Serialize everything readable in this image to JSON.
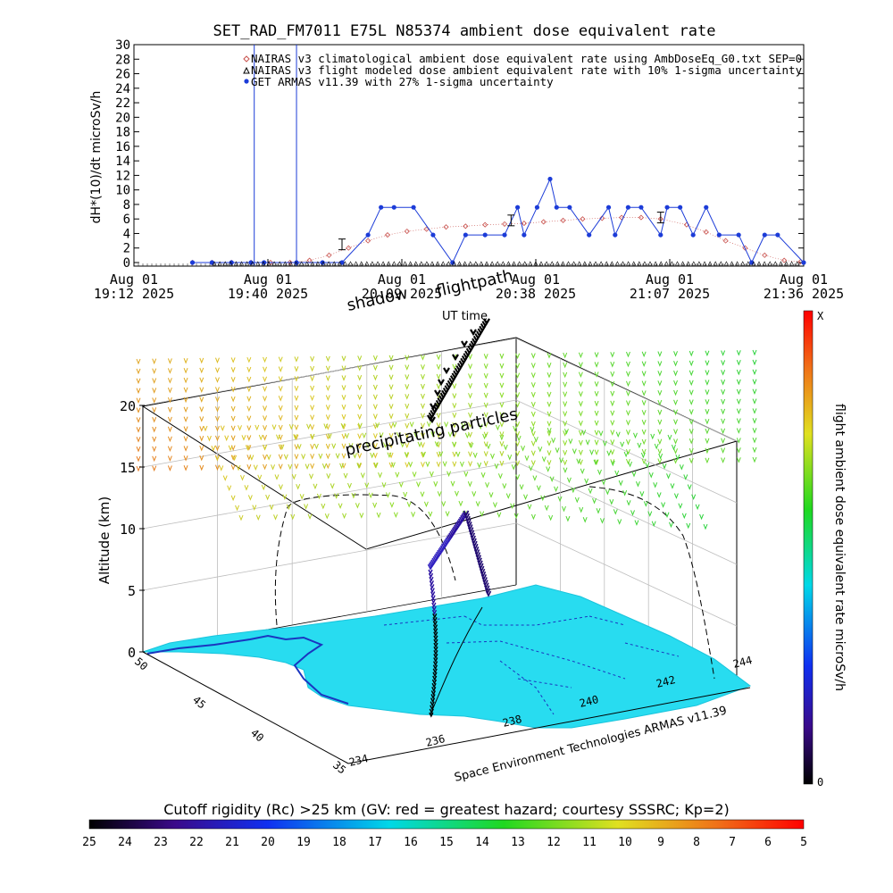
{
  "title": "SET_RAD_FM7011  E75L N85374 ambient dose equivalent rate",
  "timeseries": {
    "ylabel": "dH*(10)/dt microSv/h",
    "yticks": [
      "0",
      "2",
      "4",
      "6",
      "8",
      "10",
      "12",
      "14",
      "16",
      "18",
      "20",
      "22",
      "24",
      "26",
      "28",
      "30"
    ],
    "xticks": [
      {
        "top": "Aug 01",
        "bottom": "19:12 2025"
      },
      {
        "top": "Aug 01",
        "bottom": "19:40 2025"
      },
      {
        "top": "Aug 01",
        "bottom": "20:09 2025"
      },
      {
        "top": "Aug 01",
        "bottom": "20:38 2025"
      },
      {
        "top": "Aug 01",
        "bottom": "21:07 2025"
      },
      {
        "top": "Aug 01",
        "bottom": "21:36 2025"
      }
    ],
    "legend": [
      "NAIRAS v3 climatological ambient dose equivalent rate using AmbDoseEq_G0.txt SEP=0",
      "NAIRAS v3 flight modeled dose ambient equivalent rate with 10% 1-sigma uncertainty",
      "GET ARMAS v11.39 with 27% 1-sigma uncertainty"
    ]
  },
  "chart_data": [
    {
      "type": "line",
      "title": "SET_RAD_FM7011  E75L N85374 ambient dose equivalent rate",
      "ylabel": "dH*(10)/dt microSv/h",
      "ylim": [
        0,
        30
      ],
      "x_unit": "minutes since 19:12 UT, Aug 01 2025",
      "series": [
        {
          "name": "NAIRAS v3 climatological ambient dose equivalent rate using AmbDoseEq_G0.txt SEP=0",
          "color": "#c8504c",
          "x": [
            18,
            24,
            30,
            36,
            42,
            48,
            54,
            60,
            66,
            72,
            78,
            84,
            90,
            96,
            102,
            108,
            114,
            120,
            126,
            132,
            138,
            144,
            150,
            156,
            162,
            170,
            176,
            182,
            188,
            194,
            200,
            205
          ],
          "y": [
            0,
            0,
            0,
            0,
            0,
            0,
            0.3,
            1.0,
            2.0,
            3.0,
            3.8,
            4.3,
            4.6,
            4.9,
            5.0,
            5.2,
            5.3,
            5.4,
            5.6,
            5.8,
            6.0,
            6.1,
            6.2,
            6.2,
            6.0,
            5.2,
            4.2,
            3.0,
            2.0,
            1.0,
            0.3,
            0.1
          ]
        },
        {
          "name": "GET ARMAS v11.39 with 27% 1-sigma uncertainty",
          "color": "#1c3cd8",
          "x": [
            18,
            24,
            30,
            36,
            40,
            50,
            58,
            64,
            72,
            76,
            80,
            86,
            92,
            98,
            102,
            108,
            114,
            118,
            120,
            124,
            128,
            130,
            134,
            140,
            146,
            148,
            152,
            156,
            162,
            164,
            168,
            172,
            176,
            180,
            186,
            190,
            194,
            198,
            206
          ],
          "y": [
            0,
            0,
            0,
            0,
            0,
            0,
            0,
            0,
            3.8,
            7.6,
            7.6,
            7.6,
            3.8,
            0,
            3.8,
            3.8,
            3.8,
            7.6,
            3.8,
            7.6,
            11.5,
            7.6,
            7.6,
            3.8,
            7.6,
            3.8,
            7.6,
            7.6,
            3.8,
            7.6,
            7.6,
            3.8,
            7.6,
            3.8,
            3.8,
            0,
            3.8,
            3.8,
            0
          ]
        },
        {
          "name": "NAIRAS v3 flight modeled dose ambient equivalent rate with 10% 1-sigma uncertainty",
          "color": "#000000",
          "x": [
            64,
            116,
            162
          ],
          "y": [
            2.5,
            5.8,
            6.2
          ]
        }
      ],
      "spikes": [
        {
          "x": 37,
          "y": 30
        },
        {
          "x": 50,
          "y": 30
        }
      ]
    },
    {
      "type": "scatter",
      "title": "",
      "zlabel": "Altitude (km)",
      "zticks": [
        "0",
        "5",
        "10",
        "15",
        "20"
      ],
      "lat_ticks": [
        "50",
        "45",
        "40",
        "35"
      ],
      "lon_ticks": [
        "234",
        "236",
        "238",
        "240",
        "242",
        "244"
      ],
      "colorbar_label": "flight ambient dose equivalent rate microSv/h",
      "colorbar_range": [
        "0",
        "X"
      ],
      "annotations": [
        "shadow",
        "flightpath",
        "UT time",
        "precipitating particles"
      ]
    }
  ],
  "map3d": {
    "zlabel": "Altitude (km)",
    "credit": "Space Environment Technologies ARMAS v11.39",
    "annotations": {
      "shadow": "shadow",
      "flightpath": "flightpath",
      "ut_time": "UT time",
      "precipitating": "precipitating particles"
    },
    "colorbar_label": "flight ambient dose equivalent rate microSv/h",
    "colorbar_top": "X",
    "colorbar_bottom": "0"
  },
  "cutoff": {
    "label": "Cutoff rigidity (Rc) >25 km (GV: red = greatest hazard; courtesy SSSRC; Kp=2)",
    "ticks": [
      "25",
      "24",
      "23",
      "22",
      "21",
      "20",
      "19",
      "18",
      "17",
      "16",
      "15",
      "14",
      "13",
      "12",
      "11",
      "10",
      "9",
      "8",
      "7",
      "6",
      "5"
    ]
  },
  "colors": {
    "nairas": "#c8504c",
    "armas": "#1c3cd8",
    "cutoff_map": "#28dcf0"
  }
}
